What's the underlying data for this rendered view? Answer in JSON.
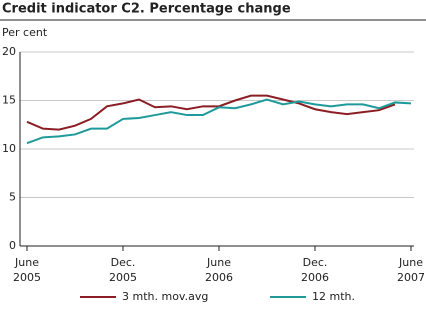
{
  "chart_data": {
    "type": "line",
    "title": "Credit indicator C2. Percentage change",
    "y_label": "Per cent",
    "categories": [
      "June 2005",
      null,
      null,
      null,
      null,
      null,
      "Dec. 2005",
      null,
      null,
      null,
      null,
      null,
      "June 2006",
      null,
      null,
      null,
      null,
      null,
      "Dec. 2006",
      null,
      null,
      null,
      null,
      null,
      "June 2007"
    ],
    "series": [
      {
        "name": "3 mth. mov.avg",
        "color": "#8b1e24",
        "values": [
          12.8,
          12.1,
          12.0,
          12.4,
          13.1,
          14.4,
          14.7,
          15.1,
          14.3,
          14.4,
          14.1,
          14.4,
          14.4,
          15.0,
          15.5,
          15.5,
          15.1,
          14.7,
          14.1,
          13.8,
          13.6,
          13.8,
          14.0,
          14.6,
          null
        ]
      },
      {
        "name": "12 mth.",
        "color": "#1e9a9a",
        "values": [
          10.6,
          11.2,
          11.3,
          11.5,
          12.1,
          12.1,
          13.1,
          13.2,
          13.5,
          13.8,
          13.5,
          13.5,
          14.3,
          14.2,
          14.6,
          15.1,
          14.6,
          14.9,
          14.6,
          14.4,
          14.6,
          14.6,
          14.2,
          14.8,
          14.7
        ]
      }
    ],
    "ylim": [
      0,
      20
    ],
    "yticks": [
      0,
      5,
      10,
      15,
      20
    ],
    "grid": true
  }
}
